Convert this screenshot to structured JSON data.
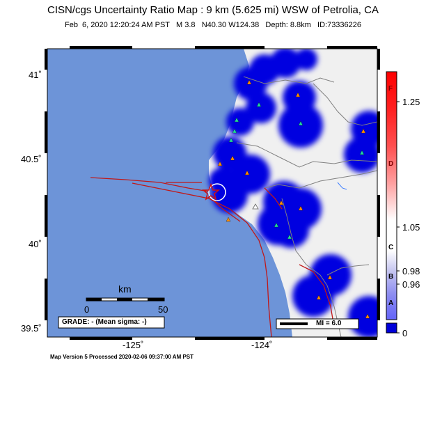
{
  "title": "CISN/cgs Uncertainty Ratio Map : 9 km (5.625 mi) WSW of Petrolia, CA",
  "subtitle": {
    "date": "Feb  6, 2020 12:20:24 AM PST",
    "magnitude": "M 3.8",
    "location": "N40.30 W124.38",
    "depth": "Depth: 8.8km",
    "id": "ID:73336226"
  },
  "axes": {
    "y_labels": [
      "41˚",
      "40.5˚",
      "40˚",
      "39.5˚"
    ],
    "x_labels": [
      "-125˚",
      "-124˚"
    ]
  },
  "scale_bar": {
    "unit": "km",
    "start": "0",
    "end": "50"
  },
  "grade_box": "GRADE: - (Mean sigma: -)",
  "mi_legend": "MI = 6.0",
  "colorbar": {
    "ticks": [
      "1.25",
      "1.05",
      "0.98",
      "0.96",
      "0"
    ],
    "letters": [
      "F",
      "D",
      "C",
      "B",
      "A"
    ],
    "colors": {
      "top": "#ff0000",
      "white": "#ffffff",
      "blue": "#0000d8"
    }
  },
  "footer": "Map Version 5 Processed 2020-02-06 09:37:00 AM PST",
  "colors": {
    "ocean": "#6d94d8",
    "land": "#f0f0f0",
    "uncertainty_blue": "#0000e0",
    "fault": "#c01818",
    "border": "#808080"
  }
}
